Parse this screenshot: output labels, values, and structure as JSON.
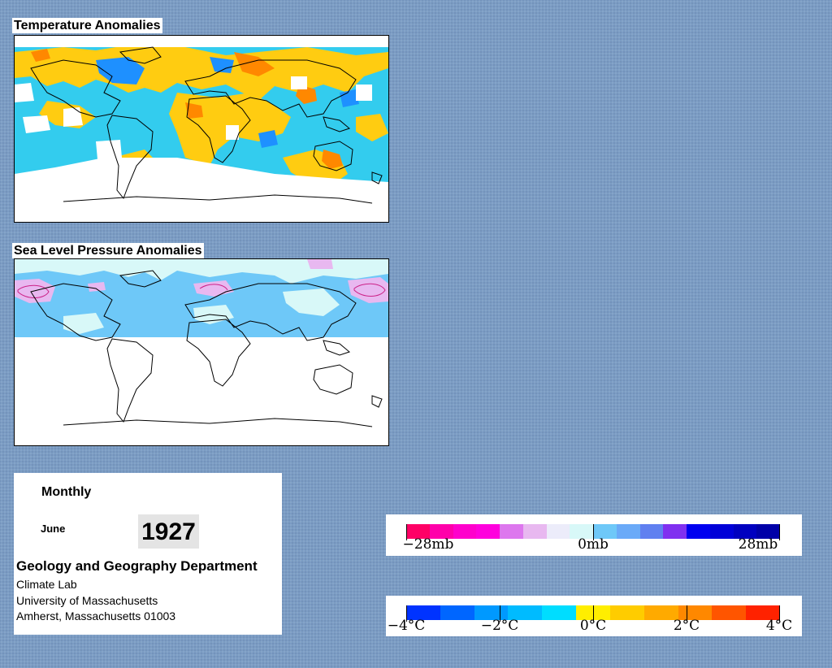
{
  "panels": {
    "temperature_title": "Temperature Anomalies",
    "pressure_title": "Sea Level Pressure Anomalies"
  },
  "info": {
    "period": "Monthly",
    "month": "June",
    "year": "1927",
    "department": "Geology and Geography Department",
    "lab": "Climate Lab",
    "university": "University of Massachusetts",
    "address": "Amherst, Massachusetts 01003"
  },
  "pressure_legend": {
    "labels": [
      "−28mb",
      "0mb",
      "28mb"
    ],
    "colors": [
      "#ff0066",
      "#ff00aa",
      "#ff00cc",
      "#ff00dd",
      "#dd77ee",
      "#e8b8f0",
      "#ececfa",
      "#d8f8f8",
      "#6ec8f8",
      "#6aaaf8",
      "#6080f0",
      "#8030f0",
      "#0000f0",
      "#0000d8",
      "#0000c0",
      "#0000a8"
    ]
  },
  "temperature_legend": {
    "labels": [
      "−4°C",
      "−2°C",
      "0°C",
      "2°C",
      "4°C"
    ],
    "colors": [
      "#0033ff",
      "#0066ff",
      "#0099ff",
      "#00bbff",
      "#00ddff",
      "#ffee00",
      "#ffcc00",
      "#ffaa00",
      "#ff8800",
      "#ff5500",
      "#ff2200"
    ]
  },
  "map_colors": {
    "temperature": {
      "cold_strong": "#1e90ff",
      "cold": "#33ccee",
      "warm": "#ffcc11",
      "warm_strong": "#ff8800",
      "missing": "#ffffff"
    },
    "pressure": {
      "negative": "#e8b8f0",
      "neutral": "#d8f8f8",
      "positive_weak": "#6ec8f8",
      "missing": "#ffffff"
    }
  }
}
